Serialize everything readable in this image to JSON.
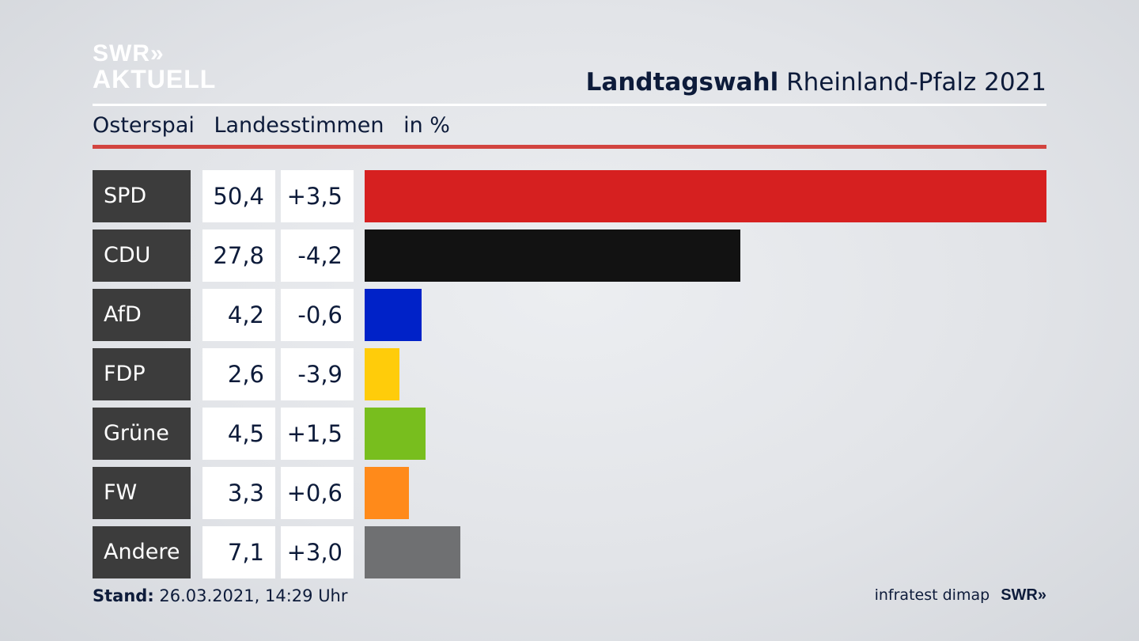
{
  "logo": {
    "line1": "SWR»",
    "line2": "AKTUELL"
  },
  "header": {
    "title_bold": "Landtagswahl",
    "title_rest": "Rheinland-Pfalz 2021"
  },
  "subheader": {
    "place": "Osterspai",
    "vote_type": "Landesstimmen",
    "unit": "in %"
  },
  "colors": {
    "accent_rule": "#d2443f",
    "party_label_bg": "#3c3c3c",
    "text": "#0d1b3a"
  },
  "chart_data": {
    "type": "bar",
    "orientation": "horizontal",
    "categories": [
      "SPD",
      "CDU",
      "AfD",
      "FDP",
      "Grüne",
      "FW",
      "Andere"
    ],
    "values": [
      50.4,
      27.8,
      4.2,
      2.6,
      4.5,
      3.3,
      7.1
    ],
    "value_labels": [
      "50,4",
      "27,8",
      "4,2",
      "2,6",
      "4,5",
      "3,3",
      "7,1"
    ],
    "change_labels": [
      "+3,5",
      "-4,2",
      "-0,6",
      "-3,9",
      "+1,5",
      "+0,6",
      "+3,0"
    ],
    "changes": [
      3.5,
      -4.2,
      -0.6,
      -3.9,
      1.5,
      0.6,
      3.0
    ],
    "bar_colors": [
      "#d62020",
      "#121212",
      "#0022c8",
      "#ffcc0a",
      "#78be1e",
      "#ff8a1a",
      "#6f7072"
    ],
    "xlim": [
      0,
      50.4
    ],
    "grid": false,
    "title": "Landtagswahl Rheinland-Pfalz 2021"
  },
  "footer": {
    "stand_label": "Stand:",
    "stand_value": "26.03.2021, 14:29 Uhr",
    "source": "infratest dimap",
    "brand": "SWR»"
  }
}
